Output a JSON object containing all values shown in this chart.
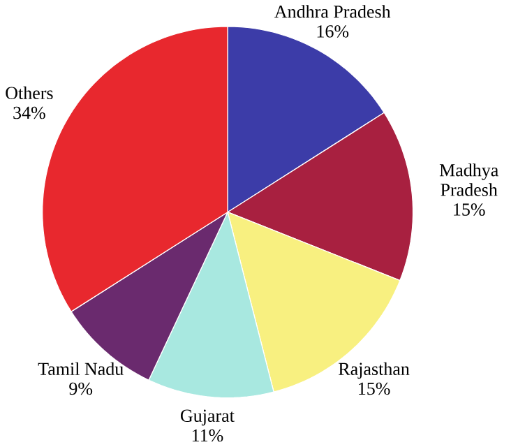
{
  "chart_data": {
    "type": "pie",
    "categories": [
      "Andhra Pradesh",
      "Madhya Pradesh",
      "Rajasthan",
      "Gujarat",
      "Tamil Nadu",
      "Others"
    ],
    "values": [
      16,
      15,
      15,
      11,
      9,
      34
    ],
    "value_labels": [
      "16%",
      "15%",
      "15%",
      "11%",
      "9%",
      "34%"
    ],
    "colors": [
      "#3c3ca8",
      "#a82040",
      "#f8f080",
      "#a8e8e0",
      "#6a2a6e",
      "#e8282e"
    ]
  }
}
